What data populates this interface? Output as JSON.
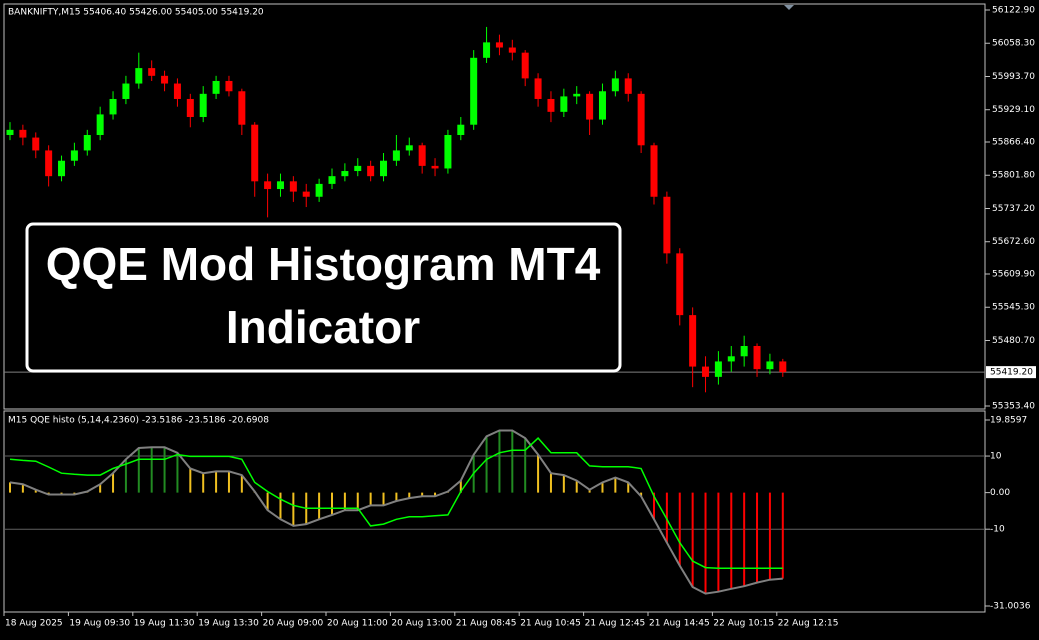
{
  "banner": [
    "QQE Mod Histogram MT4",
    "Indicator"
  ],
  "chart_data": [
    {
      "type": "candlestick",
      "title": "BANKNIFTY,M15 55406.40 55426.00 55405.00 55419.20",
      "categories": [
        "18 Aug 2025",
        null,
        null,
        null,
        null,
        "19 Aug 09:30",
        null,
        null,
        null,
        null,
        "19 Aug 11:30",
        null,
        null,
        null,
        null,
        "19 Aug 13:30",
        null,
        null,
        null,
        null,
        "20 Aug 09:00",
        null,
        null,
        null,
        null,
        "20 Aug 11:00",
        null,
        null,
        null,
        null,
        "20 Aug 13:00",
        null,
        null,
        null,
        null,
        "21 Aug 08:45",
        null,
        null,
        null,
        null,
        "21 Aug 10:45",
        null,
        null,
        null,
        null,
        "21 Aug 12:45",
        null,
        null,
        null,
        null,
        "21 Aug 14:45",
        null,
        null,
        null,
        null,
        "22 Aug 10:15",
        null,
        null,
        null,
        null,
        "22 Aug 12:15"
      ],
      "open": [
        55880,
        55890,
        55875,
        55850,
        55800,
        55830,
        55850,
        55880,
        55920,
        55950,
        55980,
        56010,
        55995,
        55980,
        55950,
        55915,
        55960,
        55985,
        55965,
        55900,
        55790,
        55775,
        55790,
        55770,
        55760,
        55785,
        55800,
        55810,
        55820,
        55800,
        55830,
        55850,
        55860,
        55820,
        55815,
        55880,
        55900,
        56030,
        56060,
        56050,
        56040,
        55990,
        55950,
        55925,
        55955,
        55960,
        55910,
        55965,
        55990,
        55960,
        55860,
        55760,
        55650,
        55530,
        55430,
        55410,
        55440,
        55450,
        55470,
        55425,
        55440
      ],
      "high": [
        55905,
        55900,
        55885,
        55860,
        55840,
        55865,
        55890,
        55935,
        55965,
        55995,
        56040,
        56025,
        56005,
        55990,
        55960,
        55975,
        55995,
        55995,
        55970,
        55905,
        55805,
        55805,
        55800,
        55785,
        55795,
        55815,
        55825,
        55835,
        55830,
        55845,
        55880,
        55875,
        55865,
        55835,
        55890,
        55915,
        56045,
        56090,
        56075,
        56065,
        56045,
        56000,
        55965,
        55970,
        55975,
        55965,
        55980,
        56005,
        56000,
        55965,
        55865,
        55770,
        55660,
        55545,
        55450,
        55460,
        55470,
        55490,
        55475,
        55455,
        55445
      ],
      "low": [
        55870,
        55860,
        55835,
        55780,
        55790,
        55820,
        55840,
        55870,
        55910,
        55940,
        55970,
        55985,
        55965,
        55935,
        55895,
        55905,
        55950,
        55955,
        55880,
        55760,
        55720,
        55760,
        55750,
        55740,
        55750,
        55775,
        55790,
        55800,
        55790,
        55790,
        55820,
        55840,
        55805,
        55800,
        55805,
        55870,
        55890,
        56020,
        56035,
        56025,
        55975,
        55935,
        55905,
        55915,
        55940,
        55880,
        55900,
        55955,
        55945,
        55845,
        55745,
        55630,
        55510,
        55390,
        55380,
        55395,
        55420,
        55430,
        55410,
        55415,
        55410
      ],
      "close": [
        55890,
        55875,
        55850,
        55800,
        55830,
        55850,
        55880,
        55920,
        55950,
        55980,
        56010,
        55995,
        55980,
        55950,
        55915,
        55960,
        55985,
        55965,
        55900,
        55790,
        55775,
        55790,
        55770,
        55760,
        55785,
        55800,
        55810,
        55820,
        55800,
        55830,
        55850,
        55860,
        55820,
        55815,
        55880,
        55900,
        56030,
        56060,
        56050,
        56040,
        55990,
        55950,
        55925,
        55955,
        55960,
        55910,
        55965,
        55990,
        55960,
        55860,
        55760,
        55650,
        55530,
        55430,
        55410,
        55440,
        55450,
        55470,
        55425,
        55440,
        55419.2
      ],
      "up_color": "#00ff00",
      "down_color": "#ff0000",
      "ylim": [
        55353.4,
        56122.9
      ],
      "yticks": [
        {
          "value": 56122.9,
          "label": "56122.90"
        },
        {
          "value": 56058.3,
          "label": "56058.30"
        },
        {
          "value": 55993.7,
          "label": "55993.70"
        },
        {
          "value": 55929.1,
          "label": "55929.10"
        },
        {
          "value": 55866.4,
          "label": "55866.40"
        },
        {
          "value": 55801.8,
          "label": "55801.80"
        },
        {
          "value": 55737.2,
          "label": "55737.20"
        },
        {
          "value": 55672.6,
          "label": "55672.60"
        },
        {
          "value": 55609.9,
          "label": "55609.90"
        },
        {
          "value": 55545.3,
          "label": "55545.30"
        },
        {
          "value": 55480.7,
          "label": "55480.70"
        },
        {
          "value": 55353.4,
          "label": "55353.40"
        }
      ],
      "price_line": {
        "value": 55419.2,
        "label": "55419.20"
      }
    },
    {
      "type": "bar",
      "title": "M15 QQE histo (5,14,4.2360) -23.5186 -23.5186 -20.6908",
      "series": [
        {
          "type": "bar",
          "line_color": "#808080",
          "values": [
            2.8,
            2.3,
            0.8,
            -0.5,
            -0.5,
            -0.5,
            0.3,
            2.3,
            5.3,
            9.1,
            12.2,
            12.4,
            12.4,
            10.9,
            6.6,
            5.3,
            5.8,
            5.8,
            4.8,
            0.3,
            -4.8,
            -7.3,
            -9.1,
            -8.6,
            -7.3,
            -6.1,
            -4.8,
            -4.8,
            -3.5,
            -3.5,
            -2.3,
            -1.5,
            -1,
            -1,
            0.3,
            3.3,
            10.4,
            15.4,
            17,
            17,
            14.9,
            10.4,
            5.3,
            4.8,
            3.3,
            0.8,
            2.8,
            4.1,
            2.8,
            -1,
            -7.3,
            -13.7,
            -20,
            -25.8,
            -27.6,
            -27.1,
            -26.3,
            -25.6,
            -24.6,
            -23.8,
            -23.5186
          ],
          "colors": [
            "#f0c020",
            "#f0c020",
            "#f0c020",
            "#f0c020",
            "#f0c020",
            "#f0c020",
            "#f0c020",
            "#f0c020",
            "#f0c020",
            "#228b22",
            "#228b22",
            "#228b22",
            "#228b22",
            "#228b22",
            "#f0c020",
            "#f0c020",
            "#f0c020",
            "#f0c020",
            "#f0c020",
            "#f0c020",
            "#f0c020",
            "#f0c020",
            "#f0c020",
            "#f0c020",
            "#f0c020",
            "#f0c020",
            "#f0c020",
            "#f0c020",
            "#f0c020",
            "#f0c020",
            "#f0c020",
            "#f0c020",
            "#f0c020",
            "#f0c020",
            "#f0c020",
            "#f0c020",
            "#228b22",
            "#228b22",
            "#228b22",
            "#228b22",
            "#228b22",
            "#f0c020",
            "#f0c020",
            "#f0c020",
            "#f0c020",
            "#f0c020",
            "#f0c020",
            "#f0c020",
            "#f0c020",
            "#f0c020",
            "#ff0000",
            "#ff0000",
            "#ff0000",
            "#ff0000",
            "#ff0000",
            "#ff0000",
            "#ff0000",
            "#ff0000",
            "#ff0000",
            "#ff0000",
            "#ff0000"
          ]
        },
        {
          "type": "line",
          "color": "#00ff00",
          "values": [
            9.1,
            8.8,
            8.6,
            7,
            5.3,
            5,
            4.8,
            4.8,
            6.6,
            7.8,
            9.1,
            9.1,
            9.1,
            10.4,
            9.9,
            9.9,
            9.9,
            9.9,
            9.1,
            2.8,
            0.3,
            -1.8,
            -3.5,
            -4.3,
            -4.3,
            -4.3,
            -4.3,
            -4.3,
            -9.1,
            -8.6,
            -7.3,
            -6.6,
            -6.6,
            -6.3,
            -6.1,
            0.3,
            5.3,
            9.1,
            10.9,
            11.6,
            11.6,
            14.9,
            10.9,
            10.9,
            10.9,
            7.3,
            7.1,
            7.1,
            7.1,
            6.6,
            -1,
            -7.3,
            -13.7,
            -18.7,
            -20.5,
            -20.6908,
            -20.6908,
            -20.6908,
            -20.6908,
            -20.6908,
            -20.6908
          ]
        }
      ],
      "ylim": [
        -31.0036,
        19.8597
      ],
      "yticks": [
        19.8597,
        10,
        {
          "value": 0,
          "label": "0.00"
        },
        -10,
        -31.0036
      ]
    }
  ]
}
